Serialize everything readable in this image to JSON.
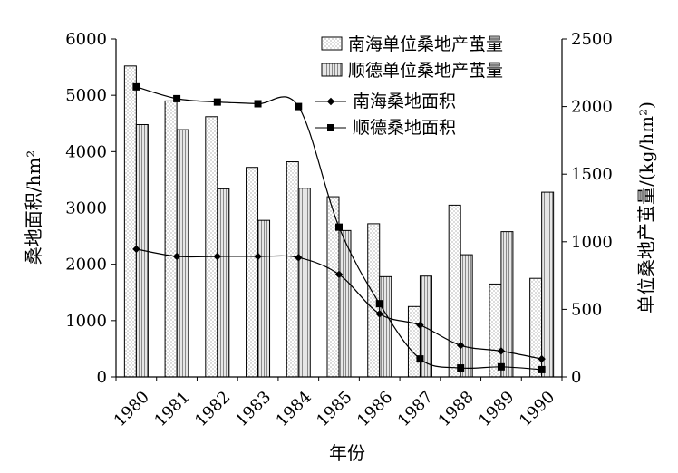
{
  "chart_data": {
    "type": "bar+line",
    "title": "",
    "categories": [
      "1980",
      "1981",
      "1982",
      "1983",
      "1984",
      "1985",
      "1986",
      "1987",
      "1988",
      "1989",
      "1990"
    ],
    "xlabel": "年份",
    "ylabel_left": "桑地面积/hm²",
    "ylabel_right": "单位桑地产茧量/(kg/hm²)",
    "ylim_left": [
      0,
      6000
    ],
    "yticks_left": [
      0,
      1000,
      2000,
      3000,
      4000,
      5000,
      6000
    ],
    "ylim_right": [
      0,
      2500
    ],
    "yticks_right": [
      0,
      500,
      1000,
      1500,
      2000,
      2500
    ],
    "grid": false,
    "legend_position": "top-right",
    "series": [
      {
        "name": "南海单位桑地产茧量",
        "kind": "bar",
        "axis": "left",
        "style": "dotted",
        "values": [
          5520,
          4900,
          4620,
          3720,
          3820,
          3200,
          2720,
          1250,
          3050,
          1650,
          1750
        ]
      },
      {
        "name": "顺德单位桑地产茧量",
        "kind": "bar",
        "axis": "left",
        "style": "striped",
        "values": [
          4480,
          4390,
          3340,
          2780,
          3350,
          2600,
          1780,
          1790,
          2170,
          2580,
          3280
        ]
      },
      {
        "name": "南海桑地面积",
        "kind": "line",
        "axis": "left",
        "marker": "diamond",
        "values": [
          2270,
          2140,
          2140,
          2140,
          2120,
          1820,
          1120,
          920,
          560,
          460,
          320
        ]
      },
      {
        "name": "顺德桑地面积",
        "kind": "line",
        "axis": "left",
        "marker": "square",
        "values": [
          5150,
          4940,
          4880,
          4850,
          4800,
          2660,
          1300,
          320,
          160,
          180,
          130
        ]
      }
    ]
  }
}
